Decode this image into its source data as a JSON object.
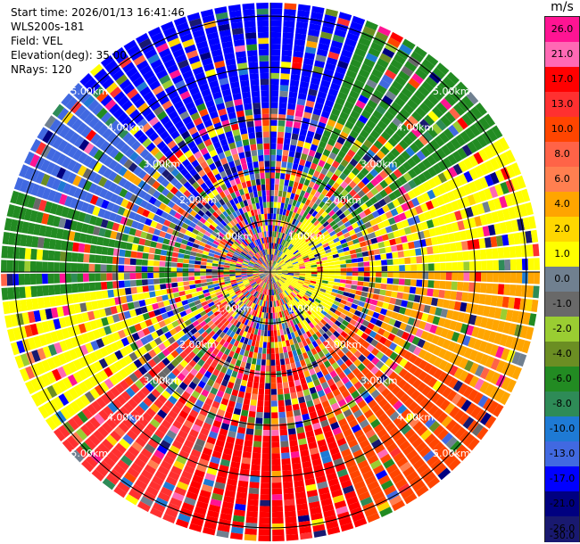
{
  "header": {
    "start_time": "Start time: 2026/01/13 16:41:46",
    "device": "WLS200s-181",
    "field": "Field: VEL",
    "elevation": "Elevation(deg): 35.00",
    "nrays": "NRays: 120"
  },
  "chart_data": {
    "type": "heatmap",
    "projection": "polar-ppi",
    "field": "VEL",
    "n_rays": 120,
    "elevation_deg": 35.0,
    "range_rings_km": [
      "1.00km",
      "2.00km",
      "3.00km",
      "4.00km",
      "5.00km"
    ],
    "colorbar": {
      "unit": "m/s",
      "tick_labels": [
        "26.0",
        "21.0",
        "17.0",
        "13.0",
        "10.0",
        "8.0",
        "6.0",
        "4.0",
        "2.0",
        "1.0",
        "0.0",
        "-1.0",
        "-2.0",
        "-4.0",
        "-6.0",
        "-8.0",
        "-10.0",
        "-13.0",
        "-17.0",
        "-21.0",
        "-26.0",
        "-30.0"
      ],
      "colors": [
        "#ff1493",
        "#ff69b4",
        "#ff0000",
        "#ff3030",
        "#ff4500",
        "#ff6347",
        "#ff7f50",
        "#ffa500",
        "#ffd700",
        "#ffff00",
        "#708090",
        "#696969",
        "#9acd32",
        "#6b8e23",
        "#228b22",
        "#2e8b57",
        "#1e7ad4",
        "#4169e1",
        "#0000ff",
        "#000080",
        "#191970"
      ]
    },
    "sector_dominant_colors": [
      {
        "azimuth_deg": 0,
        "color": "#0000ff"
      },
      {
        "azimuth_deg": 40,
        "color": "#228b22"
      },
      {
        "azimuth_deg": 80,
        "color": "#ffff00"
      },
      {
        "azimuth_deg": 100,
        "color": "#ffa500"
      },
      {
        "azimuth_deg": 140,
        "color": "#ff4500"
      },
      {
        "azimuth_deg": 180,
        "color": "#ff0000"
      },
      {
        "azimuth_deg": 220,
        "color": "#ff3030"
      },
      {
        "azimuth_deg": 250,
        "color": "#ffff00"
      },
      {
        "azimuth_deg": 275,
        "color": "#228b22"
      },
      {
        "azimuth_deg": 300,
        "color": "#4169e1"
      },
      {
        "azimuth_deg": 330,
        "color": "#0000ff"
      }
    ]
  }
}
